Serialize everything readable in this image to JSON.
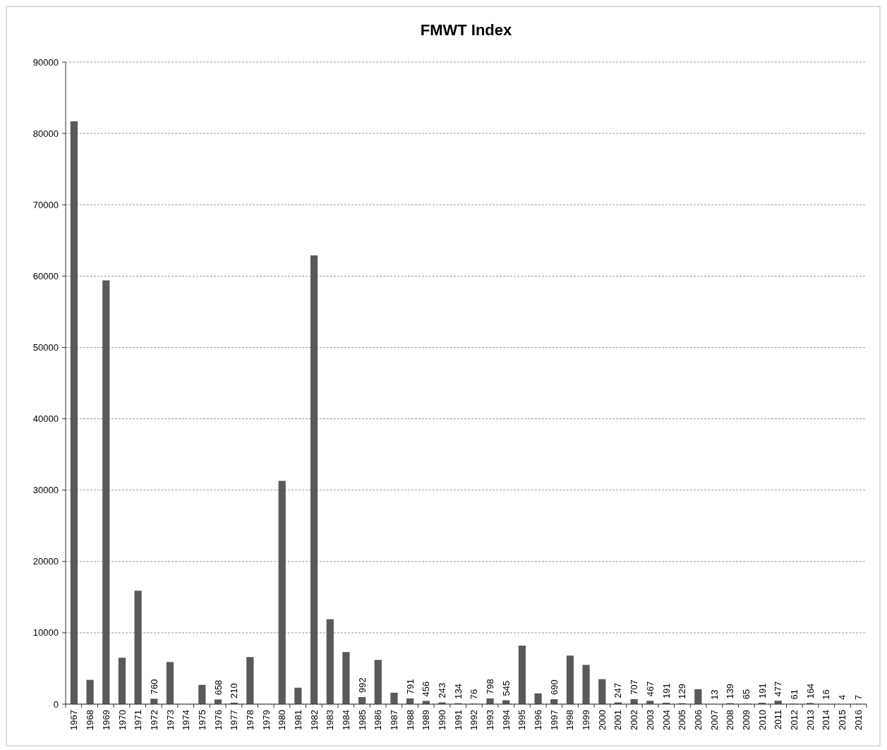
{
  "chart_data": {
    "type": "bar",
    "title": "FMWT Index",
    "categories": [
      "1967",
      "1968",
      "1969",
      "1970",
      "1971",
      "1972",
      "1973",
      "1974",
      "1975",
      "1976",
      "1977",
      "1978",
      "1979",
      "1980",
      "1981",
      "1982",
      "1983",
      "1984",
      "1985",
      "1986",
      "1987",
      "1988",
      "1989",
      "1990",
      "1991",
      "1992",
      "1993",
      "1994",
      "1995",
      "1996",
      "1997",
      "1998",
      "1999",
      "2000",
      "2001",
      "2002",
      "2003",
      "2004",
      "2005",
      "2006",
      "2007",
      "2008",
      "2009",
      "2010",
      "2011",
      "2012",
      "2013",
      "2014",
      "2015",
      "2016"
    ],
    "values": [
      81700,
      3400,
      59400,
      6500,
      15900,
      760,
      5900,
      0,
      2700,
      658,
      210,
      6600,
      0,
      31300,
      2300,
      62900,
      11900,
      7300,
      992,
      6200,
      1600,
      791,
      456,
      243,
      134,
      76,
      798,
      545,
      8200,
      1500,
      690,
      6800,
      5500,
      3500,
      247,
      707,
      467,
      191,
      129,
      2100,
      13,
      139,
      65,
      191,
      477,
      61,
      164,
      16,
      4,
      7
    ],
    "value_labels": [
      null,
      null,
      null,
      null,
      null,
      "760",
      null,
      null,
      null,
      "658",
      "210",
      null,
      null,
      null,
      null,
      null,
      null,
      null,
      "992",
      null,
      null,
      "791",
      "456",
      "243",
      "134",
      "76",
      "798",
      "545",
      null,
      null,
      "690",
      null,
      null,
      null,
      "247",
      "707",
      "467",
      "191",
      "129",
      null,
      "13",
      "139",
      "65",
      "191",
      "477",
      "61",
      "164",
      "16",
      "4",
      "7"
    ],
    "color": "#595959",
    "ylim": [
      0,
      90000
    ],
    "yticks": [
      0,
      10000,
      20000,
      30000,
      40000,
      50000,
      60000,
      70000,
      80000,
      90000
    ],
    "grid": "y"
  }
}
